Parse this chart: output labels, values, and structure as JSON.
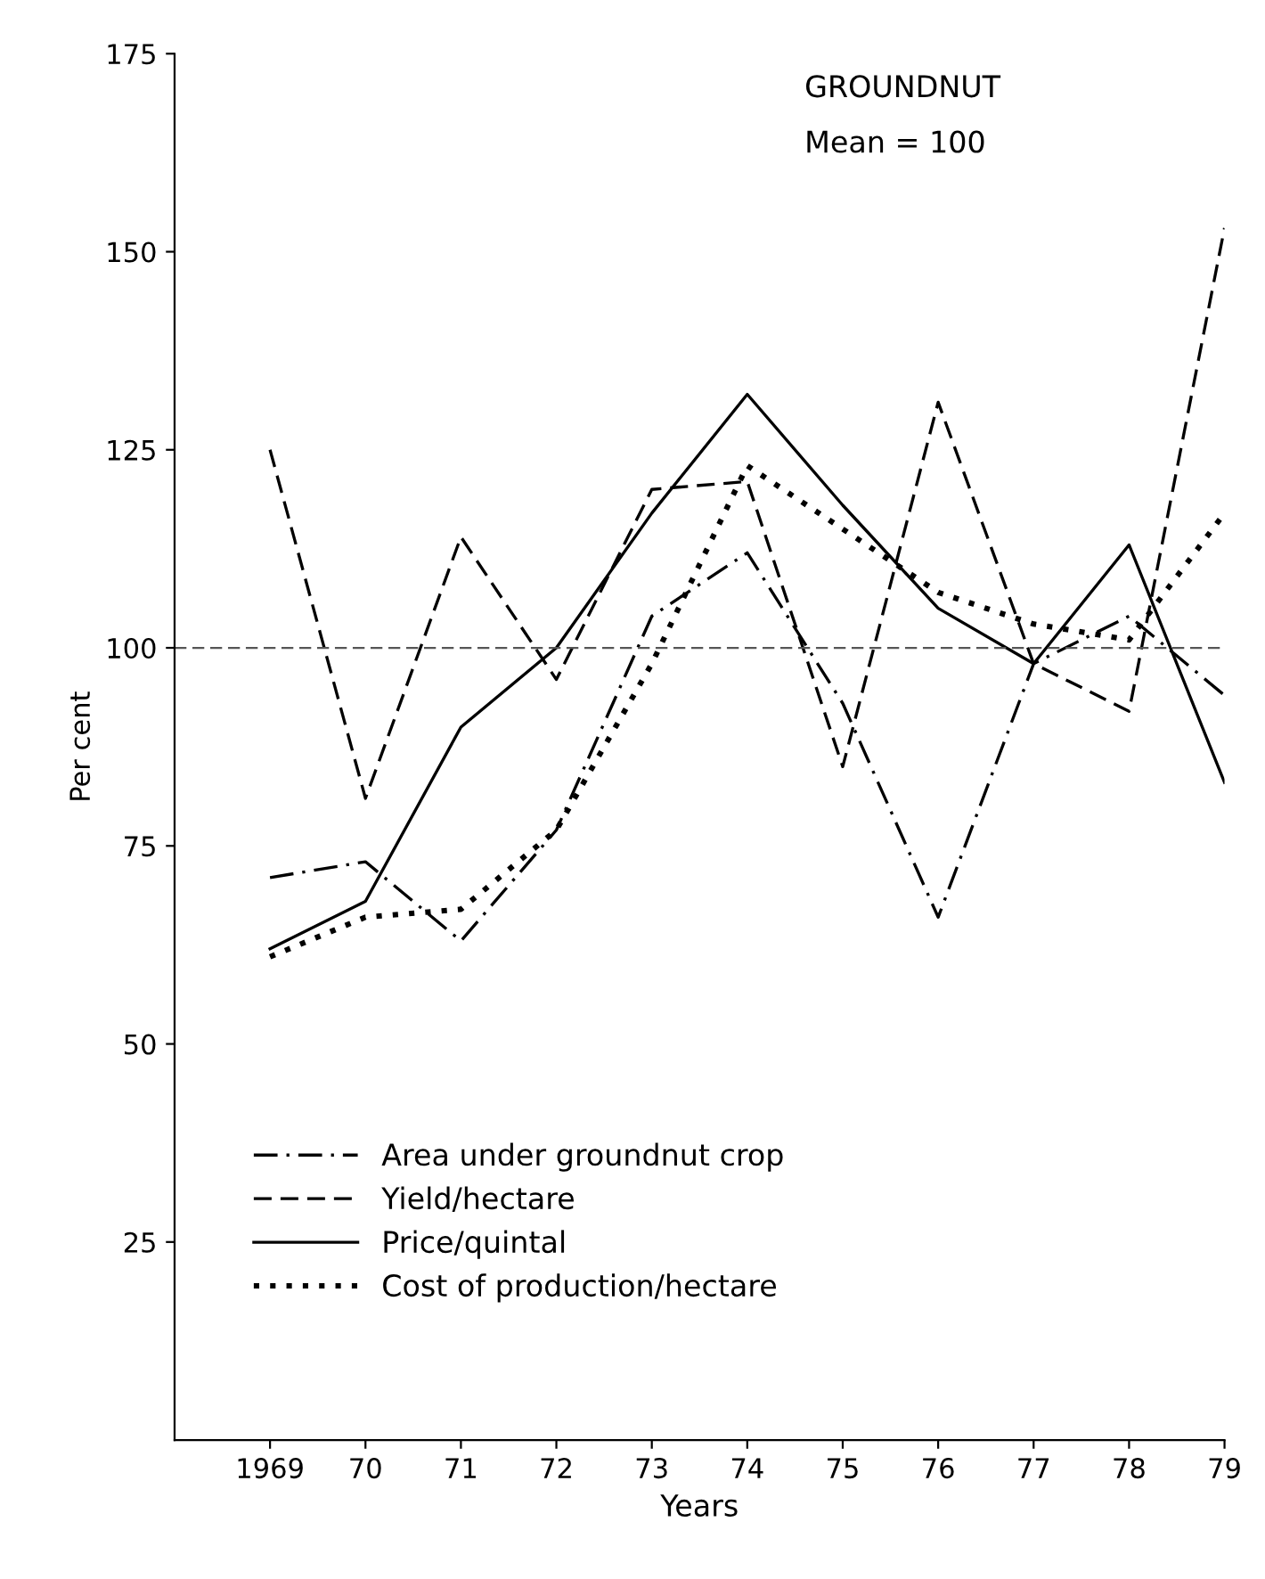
{
  "chart_data": {
    "type": "line",
    "title": "GROUNDNUT",
    "subtitle": "Mean = 100",
    "xlabel": "Years",
    "ylabel": "Per cent",
    "x": [
      1969,
      1970,
      1971,
      1972,
      1973,
      1974,
      1975,
      1976,
      1977,
      1978,
      1979
    ],
    "series": [
      {
        "name": "Area under groundnut crop",
        "color": "#000000",
        "line_style": "dashdot",
        "values": [
          71,
          73,
          63,
          77,
          104,
          112,
          93,
          66,
          98,
          104,
          94
        ]
      },
      {
        "name": "Yield/hectare",
        "color": "#000000",
        "line_style": "dashed",
        "values": [
          125,
          81,
          114,
          96,
          120,
          121,
          85,
          131,
          98,
          92,
          153
        ]
      },
      {
        "name": "Price/quintal",
        "color": "#000000",
        "line_style": "solid",
        "values": [
          62,
          68,
          90,
          100,
          117,
          132,
          118,
          105,
          98,
          113,
          83
        ]
      },
      {
        "name": "Cost of production/hectare",
        "color": "#000000",
        "line_style": "dotted",
        "values": [
          61,
          66,
          67,
          77,
          98,
          123,
          115,
          107,
          103,
          101,
          117
        ]
      }
    ],
    "ref_lines": [
      {
        "axis": "y",
        "value": 100,
        "color": "#555555",
        "line_style": "dashed"
      }
    ],
    "xlim": [
      1968,
      1979
    ],
    "ylim": [
      0,
      175
    ],
    "xticks": [
      1969,
      {
        "value": 1970,
        "label": "70"
      },
      {
        "value": 1971,
        "label": "71"
      },
      {
        "value": 1972,
        "label": "72"
      },
      {
        "value": 1973,
        "label": "73"
      },
      {
        "value": 1974,
        "label": "74"
      },
      {
        "value": 1975,
        "label": "75"
      },
      {
        "value": 1976,
        "label": "76"
      },
      {
        "value": 1977,
        "label": "77"
      },
      {
        "value": 1978,
        "label": "78"
      },
      {
        "value": 1979,
        "label": "79"
      }
    ],
    "yticks": [
      25,
      50,
      75,
      100,
      125,
      150,
      175
    ],
    "legend": "bottom left"
  }
}
